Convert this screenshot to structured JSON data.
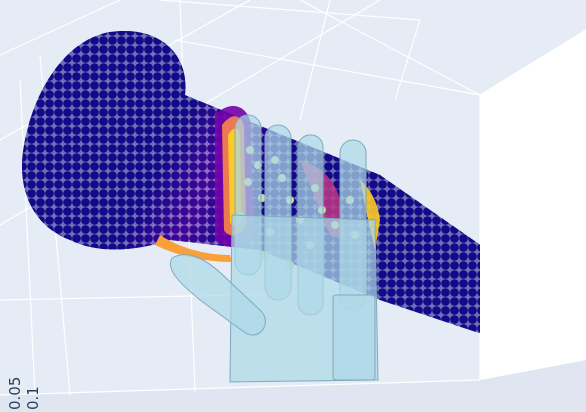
{
  "plot": {
    "background_color": "#e5ecf6",
    "grid_color": "#ffffff",
    "mesh_color": "#add8e6",
    "colorscale": [
      "#0d0887",
      "#46039f",
      "#7201a8",
      "#9c179e",
      "#bd3786",
      "#d8576b",
      "#ed7953",
      "#fb9f3a",
      "#fdca26",
      "#f0f921"
    ],
    "axis_ticks": [
      "0.05",
      "0.1"
    ]
  }
}
